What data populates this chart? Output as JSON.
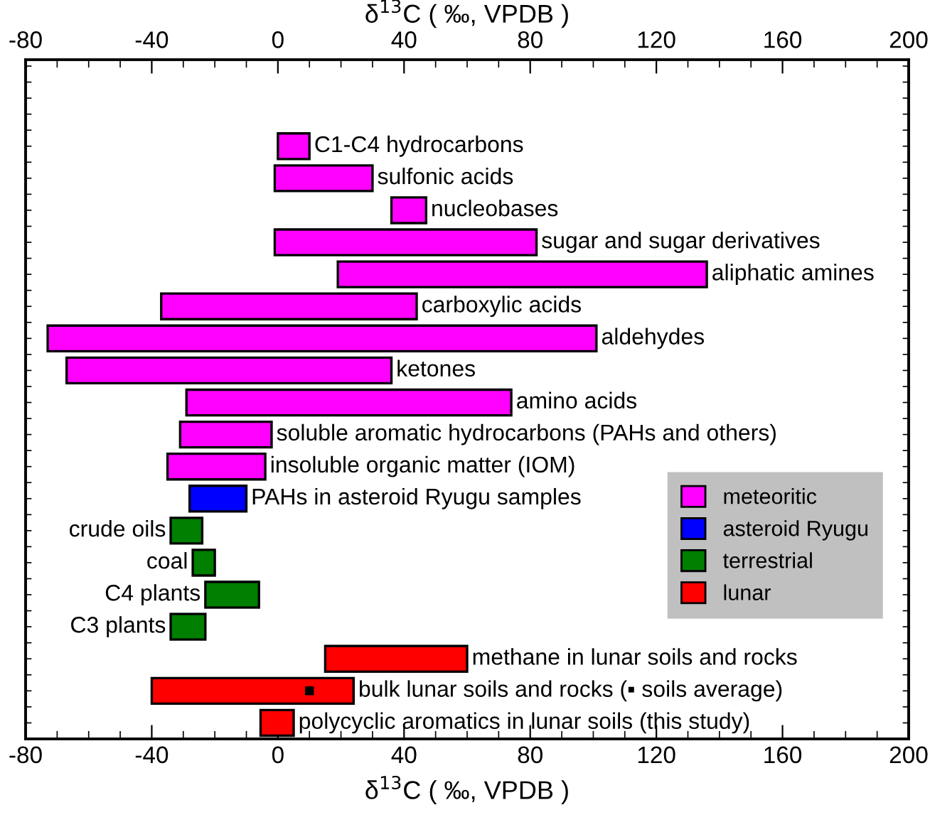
{
  "chart_data": {
    "type": "bar",
    "orientation": "horizontal",
    "xlabel": "δ$^{13}$C ( ‰, VPDB )",
    "x2label": "δ$^{13}$C ( ‰, VPDB )",
    "categories": [
      "C1-C4 hydrocarbons",
      "sulfonic acids",
      "nucleobases",
      "sugar and sugar derivatives",
      "aliphatic amines",
      "carboxylic acids",
      "aldehydes",
      "ketones",
      "amino acids",
      "soluble aromatic hydrocarbons (PAHs and others)",
      "insoluble organic matter (IOM)",
      "PAHs in asteroid Ryugu samples",
      "crude oils",
      "coal",
      "C4 plants",
      "C3 plants",
      "methane in lunar soils and rocks",
      "bulk lunar soils and rocks (▪ soils average)",
      "polycyclic aromatics in lunar soils (this study)"
    ],
    "series": [
      {
        "name": "meteoritic",
        "color": "#ff00ff",
        "base": [
          0,
          -1,
          36,
          -1,
          19,
          -37,
          -73,
          -67,
          -29,
          -31,
          -35,
          null,
          null,
          null,
          null,
          null,
          null,
          null,
          null
        ],
        "values": [
          10,
          31,
          11,
          83,
          117,
          81,
          174,
          103,
          103,
          29,
          31,
          null,
          null,
          null,
          null,
          null,
          null,
          null,
          null
        ]
      },
      {
        "name": "asteroid Ryugu",
        "color": "#0000ff",
        "base": [
          null,
          null,
          null,
          null,
          null,
          null,
          null,
          null,
          null,
          null,
          null,
          -28,
          null,
          null,
          null,
          null,
          null,
          null,
          null
        ],
        "values": [
          null,
          null,
          null,
          null,
          null,
          null,
          null,
          null,
          null,
          null,
          null,
          18,
          null,
          null,
          null,
          null,
          null,
          null,
          null
        ]
      },
      {
        "name": "terrestrial",
        "color": "#007f00",
        "base": [
          null,
          null,
          null,
          null,
          null,
          null,
          null,
          null,
          null,
          null,
          null,
          null,
          -34,
          -27,
          -23,
          -34,
          null,
          null,
          null
        ],
        "values": [
          null,
          null,
          null,
          null,
          null,
          null,
          null,
          null,
          null,
          null,
          null,
          null,
          10,
          7,
          17,
          11,
          null,
          null,
          null
        ]
      },
      {
        "name": "lunar",
        "color": "#ff0000",
        "base": [
          null,
          null,
          null,
          null,
          null,
          null,
          null,
          null,
          null,
          null,
          null,
          null,
          null,
          null,
          null,
          null,
          15,
          -40,
          -5.5
        ],
        "values": [
          null,
          null,
          null,
          null,
          null,
          null,
          null,
          null,
          null,
          null,
          null,
          null,
          null,
          null,
          null,
          null,
          45,
          64,
          10.5
        ]
      },
      {
        "type": "scatter",
        "color": "#000000",
        "marker": "square",
        "x": [
          "bulk lunar soils and rocks (▪ soils average)"
        ],
        "values": [
          10
        ]
      }
    ],
    "xlim": [
      -80,
      200
    ],
    "xticks": [
      -80,
      -40,
      0,
      40,
      80,
      120,
      160,
      200
    ],
    "x2lim": [
      -80,
      200
    ],
    "x2ticks": [
      -80,
      -40,
      0,
      40,
      80,
      120,
      160,
      200
    ],
    "tick_labels": "x",
    "grid": false,
    "legend": "right"
  }
}
